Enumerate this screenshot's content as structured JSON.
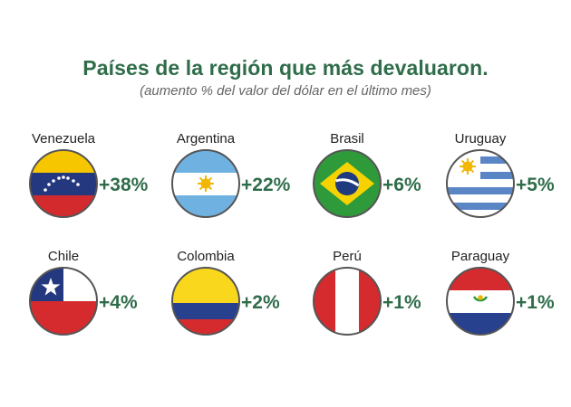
{
  "chart_data": {
    "type": "table",
    "title": "Países de la región que más devaluaron.",
    "subtitle": "(aumento % del valor del dólar en el último mes)",
    "categories": [
      "Venezuela",
      "Argentina",
      "Brasil",
      "Uruguay",
      "Chile",
      "Colombia",
      "Perú",
      "Paraguay"
    ],
    "values": [
      38,
      22,
      6,
      5,
      4,
      2,
      1,
      1
    ],
    "labels": [
      "+38%",
      "+22%",
      "+6%",
      "+5%",
      "+4%",
      "+2%",
      "+1%",
      "+1%"
    ],
    "colors": {
      "title": "#2f6d4a",
      "value": "#2f6d4a",
      "subtitle": "#666666"
    }
  }
}
